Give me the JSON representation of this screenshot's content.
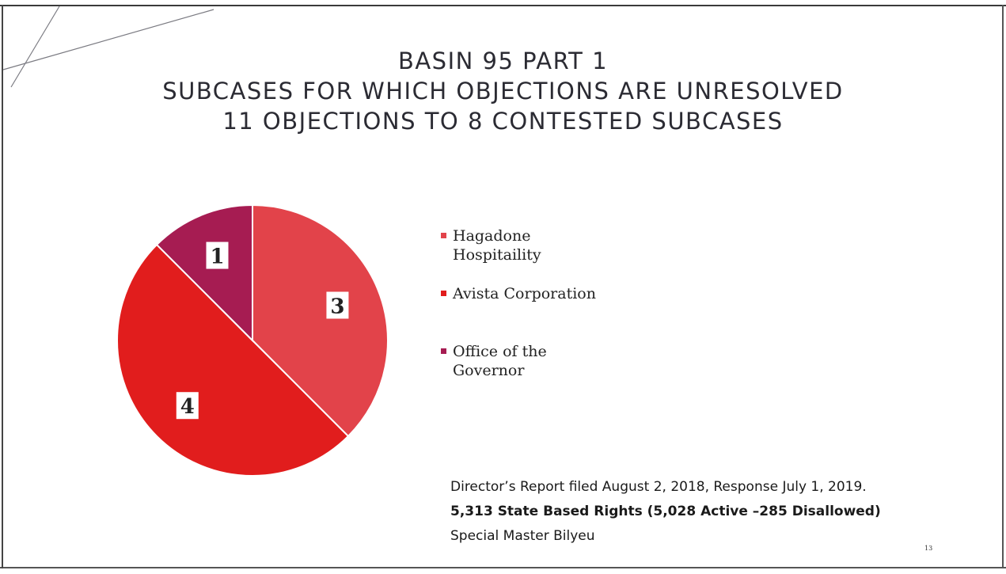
{
  "slide": {
    "title_lines": [
      "BASIN 95 PART 1",
      "SUBCASES FOR WHICH OBJECTIONS ARE UNRESOLVED",
      "11 OBJECTIONS TO 8 CONTESTED SUBCASES"
    ],
    "footer": {
      "line1": "Director’s Report filed August 2, 2018, Response July 1, 2019.",
      "line2": "5,313 State Based Rights (5,028 Active –285 Disallowed)",
      "line3": "Special Master Bilyeu"
    },
    "page_number": "13"
  },
  "chart_data": {
    "type": "pie",
    "title": "",
    "slices": [
      {
        "name": "Hagadone Hospitaility",
        "value": 3,
        "label": "3",
        "color": "#e2434a"
      },
      {
        "name": "Avista Corporation",
        "value": 4,
        "label": "4",
        "color": "#e11d1d"
      },
      {
        "name": "Office of the Governor",
        "value": 1,
        "label": "1",
        "color": "#a61c52"
      }
    ],
    "start": "12 o'clock, clockwise",
    "legend_position": "right"
  },
  "legend": {
    "items": [
      {
        "line1": "Hagadone",
        "line2": "Hospitaility"
      },
      {
        "line1": "Avista Corporation",
        "line2": ""
      },
      {
        "line1": "Office of the",
        "line2": "Governor"
      }
    ]
  }
}
